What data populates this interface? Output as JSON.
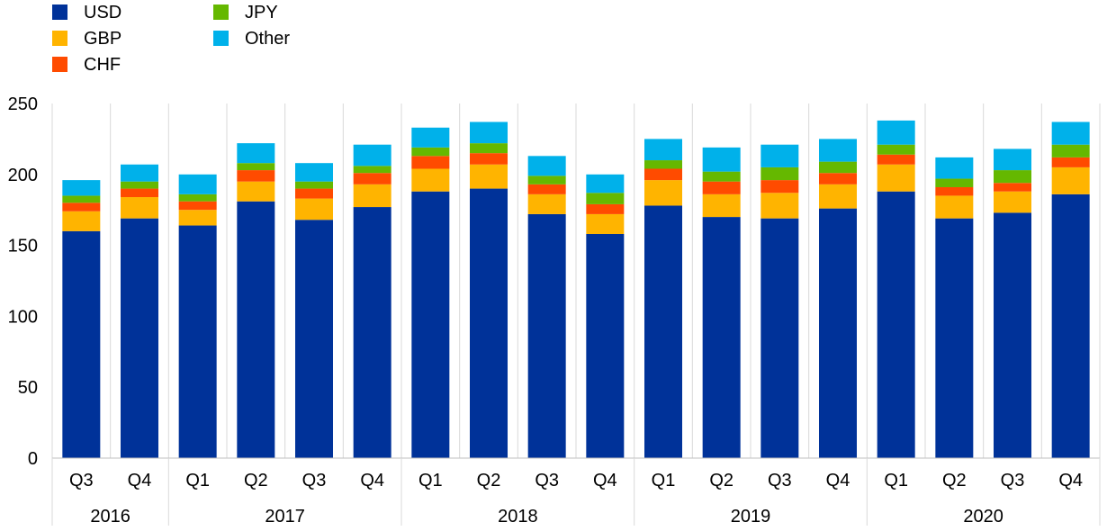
{
  "chart_data": {
    "type": "bar",
    "stacked": true,
    "title": "",
    "xlabel": "",
    "ylabel": "",
    "ylim": [
      0,
      250
    ],
    "yticks": [
      "0",
      "50",
      "100",
      "150",
      "200",
      "250"
    ],
    "grid": true,
    "legend_position": "top-left",
    "categories": [
      "Q3",
      "Q4",
      "Q1",
      "Q2",
      "Q3",
      "Q4",
      "Q1",
      "Q2",
      "Q3",
      "Q4",
      "Q1",
      "Q2",
      "Q3",
      "Q4",
      "Q1",
      "Q2",
      "Q3",
      "Q4"
    ],
    "groups": [
      {
        "label": "2016",
        "count": 2
      },
      {
        "label": "2017",
        "count": 4
      },
      {
        "label": "2018",
        "count": 4
      },
      {
        "label": "2019",
        "count": 4
      },
      {
        "label": "2020",
        "count": 4
      }
    ],
    "series": [
      {
        "name": "USD",
        "color": "#003299",
        "values": [
          160,
          169,
          164,
          181,
          168,
          177,
          188,
          190,
          172,
          158,
          178,
          170,
          169,
          176,
          188,
          169,
          173,
          186
        ]
      },
      {
        "name": "GBP",
        "color": "#FFB400",
        "values": [
          14,
          15,
          11,
          14,
          15,
          16,
          16,
          17,
          14,
          14,
          18,
          16,
          18,
          17,
          19,
          16,
          15,
          19
        ]
      },
      {
        "name": "CHF",
        "color": "#FF4B00",
        "values": [
          6,
          6,
          6,
          8,
          7,
          8,
          9,
          8,
          7,
          7,
          8,
          9,
          9,
          8,
          7,
          6,
          6,
          7
        ]
      },
      {
        "name": "JPY",
        "color": "#65B800",
        "values": [
          5,
          5,
          5,
          5,
          5,
          5,
          6,
          7,
          6,
          8,
          6,
          7,
          9,
          8,
          7,
          6,
          9,
          9
        ]
      },
      {
        "name": "Other",
        "color": "#00B1EA",
        "values": [
          11,
          12,
          14,
          14,
          13,
          15,
          14,
          15,
          14,
          13,
          15,
          17,
          16,
          16,
          17,
          15,
          15,
          16
        ]
      }
    ]
  }
}
